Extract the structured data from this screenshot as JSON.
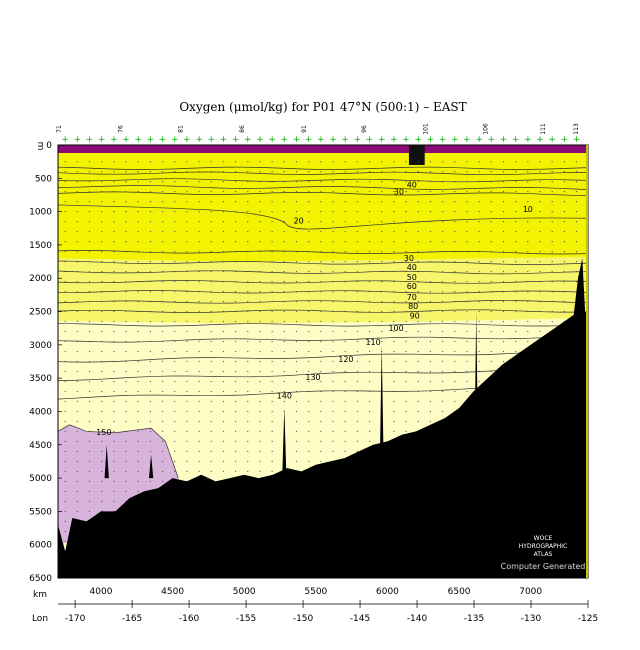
{
  "chart_data": {
    "type": "contour",
    "title": "Oxygen (μmol/kg) for P01 47°N (500:1) – EAST",
    "ylabel": "m",
    "xlabel": "km",
    "lon_label": "Lon",
    "xlim": [
      3700,
      7400
    ],
    "ylim": [
      0,
      6500
    ],
    "x_ticks": [
      4000,
      4500,
      5000,
      5500,
      6000,
      6500,
      7000
    ],
    "y_ticks": [
      0,
      500,
      1000,
      1500,
      2000,
      2500,
      3000,
      3500,
      4000,
      4500,
      5000,
      5500,
      6000,
      6500
    ],
    "lon_ticks": [
      -170,
      -165,
      -160,
      -155,
      -150,
      -145,
      -140,
      -135,
      -130,
      -125
    ],
    "station_labels": [
      "71",
      "76",
      "81",
      "86",
      "91",
      "96",
      "101",
      "106",
      "111",
      "113"
    ],
    "station_label_x": [
      3720,
      4150,
      4570,
      5000,
      5430,
      5850,
      6280,
      6700,
      7100,
      7330
    ],
    "contour_levels": [
      10,
      20,
      30,
      40,
      50,
      60,
      70,
      80,
      90,
      100,
      110,
      120,
      130,
      140,
      150
    ],
    "contour_labels": [
      {
        "text": "10",
        "x": 6980,
        "y": 960
      },
      {
        "text": "20",
        "x": 5380,
        "y": 1130
      },
      {
        "text": "30",
        "x": 6150,
        "y": 1700
      },
      {
        "text": "40",
        "x": 6170,
        "y": 1830
      },
      {
        "text": "50",
        "x": 6170,
        "y": 1980
      },
      {
        "text": "60",
        "x": 6170,
        "y": 2120
      },
      {
        "text": "70",
        "x": 6170,
        "y": 2280
      },
      {
        "text": "80",
        "x": 6180,
        "y": 2420
      },
      {
        "text": "90",
        "x": 6190,
        "y": 2560
      },
      {
        "text": "100",
        "x": 6060,
        "y": 2750
      },
      {
        "text": "110",
        "x": 5900,
        "y": 2960
      },
      {
        "text": "120",
        "x": 5710,
        "y": 3210
      },
      {
        "text": "130",
        "x": 5480,
        "y": 3480
      },
      {
        "text": "140",
        "x": 5280,
        "y": 3760
      },
      {
        "text": "150",
        "x": 4020,
        "y": 4310
      },
      {
        "text": "30",
        "x": 6080,
        "y": 700
      },
      {
        "text": "40",
        "x": 6170,
        "y": 590
      }
    ],
    "fill_colors": {
      "surface_high": "#8a0a78",
      "low_yellow": "#f3f200",
      "mid_yellow": "#f7f56a",
      "pale_yellow": "#fefdc6",
      "deep_lilac": "#d8b4dc",
      "bathymetry": "#000000",
      "station_marker": "#00b000"
    },
    "watermark": [
      "WOCE",
      "HYDROGRAPHIC",
      "ATLAS"
    ],
    "credit": "Computer Generated"
  }
}
